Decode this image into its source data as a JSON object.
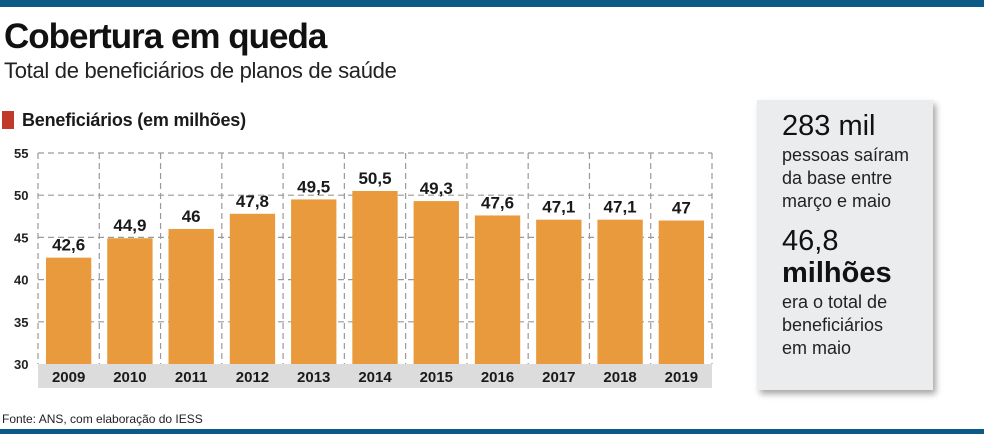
{
  "header": {
    "title": "Cobertura em queda",
    "subtitle": "Total de beneficiários de planos de saúde"
  },
  "legend": {
    "label": "Beneficiários (em milhões)",
    "color": "#c0392b"
  },
  "chart_data": {
    "type": "bar",
    "title": "Beneficiários (em milhões)",
    "categories": [
      "2009",
      "2010",
      "2011",
      "2012",
      "2013",
      "2014",
      "2015",
      "2016",
      "2017",
      "2018",
      "2019"
    ],
    "values": [
      42.6,
      44.9,
      46,
      47.8,
      49.5,
      50.5,
      49.3,
      47.6,
      47.1,
      47.1,
      47
    ],
    "value_labels": [
      "42,6",
      "44,9",
      "46",
      "47,8",
      "49,5",
      "50,5",
      "49,3",
      "47,6",
      "47,1",
      "47,1",
      "47"
    ],
    "ylim": [
      30,
      55
    ],
    "yticks": [
      30,
      35,
      40,
      45,
      50,
      55
    ],
    "grid": true,
    "bar_color": "#e89a3c",
    "axis_band_color": "#dcdcdc"
  },
  "callout": {
    "stat1_value": "283 mil",
    "stat1_lines": [
      "pessoas saíram",
      "da base entre",
      "março e maio"
    ],
    "stat2_value_lines": [
      "46,8",
      "milhões"
    ],
    "stat2_lines": [
      "era o total de",
      "beneficiários",
      "em maio"
    ]
  },
  "footer": {
    "source": "Fonte: ANS, com elaboração do IESS"
  },
  "colors": {
    "rule": "#0e5a86"
  }
}
